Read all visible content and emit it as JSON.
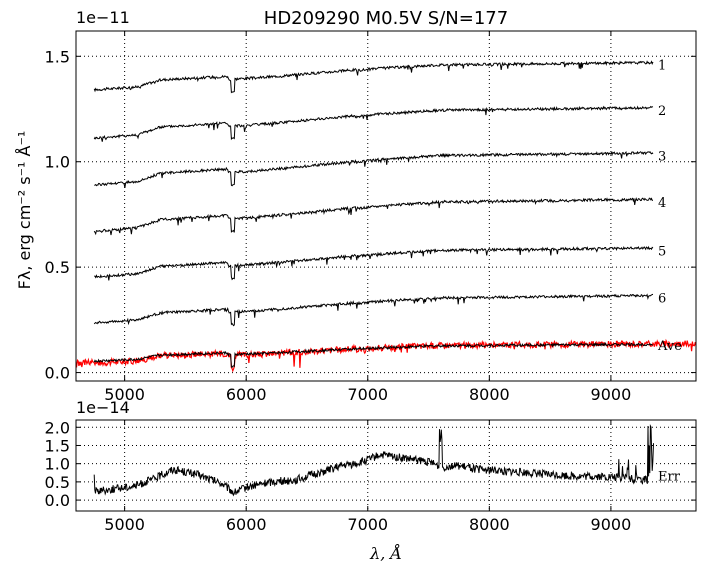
{
  "chart_data": [
    {
      "type": "line",
      "title": "HD209290  M0.5V  S/N=177",
      "ylabel": "Fλ, erg cm⁻² s⁻¹ Å⁻¹",
      "y_offset_text": "1e−11",
      "xlim": [
        4600,
        9700
      ],
      "ylim": [
        -0.04,
        1.62
      ],
      "x_ticks": [
        5000,
        6000,
        7000,
        8000,
        9000
      ],
      "y_ticks": [
        0.0,
        0.5,
        1.0,
        1.5
      ],
      "y_tick_labels": [
        "0.0",
        "0.5",
        "1.0",
        "1.5"
      ],
      "grid": true,
      "series": [
        {
          "name": "1",
          "color": "#000000",
          "start": 1.375,
          "end": 1.46
        },
        {
          "name": "2",
          "color": "#000000",
          "start": 1.15,
          "end": 1.245
        },
        {
          "name": "3",
          "color": "#000000",
          "start": 0.93,
          "end": 1.03
        },
        {
          "name": "4",
          "color": "#000000",
          "start": 0.71,
          "end": 0.81
        },
        {
          "name": "5",
          "color": "#000000",
          "start": 0.49,
          "end": 0.58
        },
        {
          "name": "6",
          "color": "#000000",
          "start": 0.27,
          "end": 0.355
        },
        {
          "name": "Ave",
          "color": "#ff0000",
          "start": 0.07,
          "end": 0.13
        }
      ]
    },
    {
      "type": "line",
      "y_offset_text": "1e−14",
      "xlabel": "λ, Å",
      "xlim": [
        4600,
        9700
      ],
      "ylim": [
        -0.3,
        2.2
      ],
      "x_ticks": [
        5000,
        6000,
        7000,
        8000,
        9000
      ],
      "y_ticks": [
        0.0,
        0.5,
        1.0,
        1.5,
        2.0
      ],
      "y_tick_labels": [
        "0.0",
        "0.5",
        "1.0",
        "1.5",
        "2.0"
      ],
      "grid": true,
      "series": [
        {
          "name": "Err",
          "color": "#000000"
        }
      ],
      "profile_x": [
        4750,
        4900,
        5100,
        5250,
        5400,
        5600,
        5800,
        5900,
        6000,
        6200,
        6400,
        6600,
        6800,
        6900,
        7000,
        7100,
        7300,
        7500,
        7600,
        7700,
        7900,
        8100,
        8300,
        8500,
        8700,
        8900,
        9100,
        9300,
        9350
      ],
      "profile_y": [
        0.25,
        0.3,
        0.4,
        0.6,
        0.85,
        0.7,
        0.45,
        0.2,
        0.35,
        0.5,
        0.55,
        0.75,
        0.95,
        1.0,
        1.1,
        1.25,
        1.15,
        1.05,
        0.9,
        0.95,
        0.85,
        0.8,
        0.75,
        0.7,
        0.65,
        0.65,
        0.6,
        0.55,
        0.6
      ]
    }
  ]
}
